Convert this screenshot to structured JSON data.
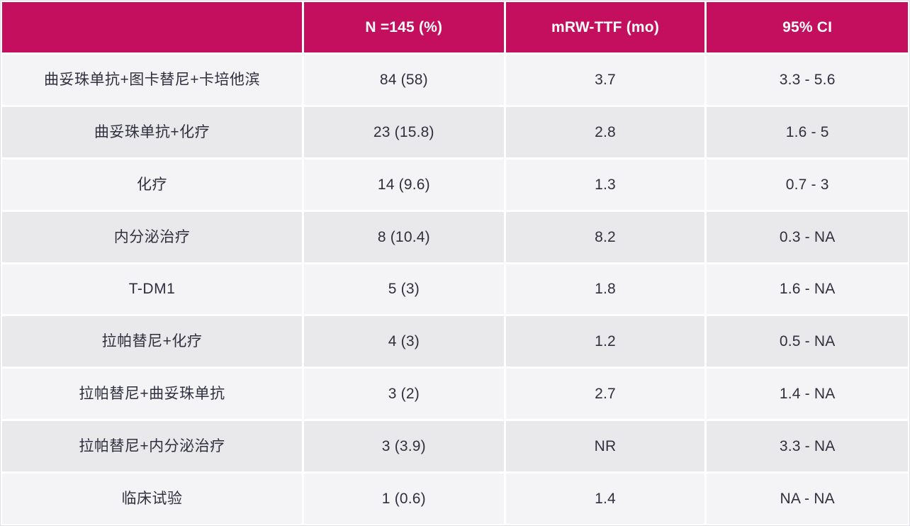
{
  "colors": {
    "header_bg": "#c40f5e",
    "header_text": "#ffffff",
    "row_light": "#f4f4f6",
    "row_dark": "#e9e9eb",
    "body_text": "#2f2f3f"
  },
  "chart_data": {
    "type": "table",
    "title": "",
    "columns": [
      "",
      "N =145 (%)",
      "mRW-TTF (mo)",
      "95% CI"
    ],
    "rows": [
      {
        "treatment": "曲妥珠单抗+图卡替尼+卡培他滨",
        "n_pct": "84 (58)",
        "mrw_ttf": "3.7",
        "ci": "3.3 - 5.6"
      },
      {
        "treatment": "曲妥珠单抗+化疗",
        "n_pct": "23 (15.8)",
        "mrw_ttf": "2.8",
        "ci": "1.6 - 5"
      },
      {
        "treatment": "化疗",
        "n_pct": "14 (9.6)",
        "mrw_ttf": "1.3",
        "ci": "0.7 - 3"
      },
      {
        "treatment": "内分泌治疗",
        "n_pct": "8 (10.4)",
        "mrw_ttf": "8.2",
        "ci": "0.3 - NA"
      },
      {
        "treatment": "T-DM1",
        "n_pct": "5 (3)",
        "mrw_ttf": "1.8",
        "ci": "1.6 - NA"
      },
      {
        "treatment": "拉帕替尼+化疗",
        "n_pct": "4 (3)",
        "mrw_ttf": "1.2",
        "ci": "0.5 - NA"
      },
      {
        "treatment": "拉帕替尼+曲妥珠单抗",
        "n_pct": "3 (2)",
        "mrw_ttf": "2.7",
        "ci": "1.4 - NA"
      },
      {
        "treatment": "拉帕替尼+内分泌治疗",
        "n_pct": "3 (3.9)",
        "mrw_ttf": "NR",
        "ci": "3.3 - NA"
      },
      {
        "treatment": "临床试验",
        "n_pct": "1 (0.6)",
        "mrw_ttf": "1.4",
        "ci": "NA - NA"
      }
    ]
  }
}
